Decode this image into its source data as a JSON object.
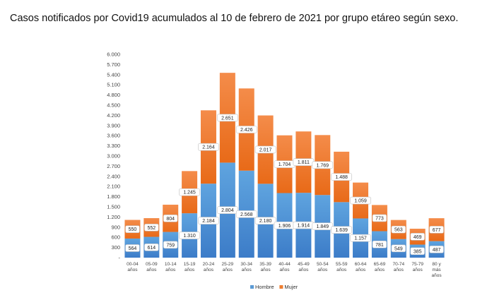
{
  "title": "Casos notificados por Covid19 acumulados al 10 de febrero de 2021 por grupo etáreo según sexo.",
  "chart_data": {
    "type": "bar",
    "stacked": true,
    "categories": [
      [
        "00-04",
        "años"
      ],
      [
        "05-09",
        "años"
      ],
      [
        "10-14",
        "años"
      ],
      [
        "15-19",
        "años"
      ],
      [
        "20-24",
        "años"
      ],
      [
        "25-29",
        "años"
      ],
      [
        "30-34",
        "años"
      ],
      [
        "35-39",
        "años"
      ],
      [
        "40-44",
        "años"
      ],
      [
        "45-49",
        "años"
      ],
      [
        "50-54",
        "años"
      ],
      [
        "55-59",
        "años"
      ],
      [
        "60-64",
        "años"
      ],
      [
        "65-69",
        "años"
      ],
      [
        "70-74",
        "años"
      ],
      [
        "75-79",
        "años"
      ],
      [
        "80 y",
        "más",
        "años"
      ]
    ],
    "series": [
      {
        "name": "Hombre",
        "color": "#5B9BD5",
        "values": [
          564,
          614,
          759,
          1310,
          2184,
          2804,
          2568,
          2180,
          1906,
          1914,
          1849,
          1639,
          1157,
          781,
          549,
          385,
          487
        ],
        "labels": [
          "564",
          "614",
          "759",
          "1.310",
          "2.184",
          "2.804",
          "2.568",
          "2.180",
          "1.906",
          "1.914",
          "1.849",
          "1.639",
          "1.157",
          "781",
          "549",
          "385",
          "487"
        ]
      },
      {
        "name": "Mujer",
        "color": "#ED7D31",
        "values": [
          550,
          552,
          804,
          1245,
          2164,
          2651,
          2426,
          2017,
          1704,
          1811,
          1769,
          1488,
          1059,
          773,
          563,
          469,
          677
        ],
        "labels": [
          "550",
          "552",
          "804",
          "1.245",
          "2.164",
          "2.651",
          "2.426",
          "2.017",
          "1.704",
          "1.811",
          "1.769",
          "1.488",
          "1.059",
          "773",
          "563",
          "469",
          "677"
        ]
      }
    ],
    "yticks": [
      "-",
      "300",
      "600",
      "900",
      "1.200",
      "1.500",
      "1.800",
      "2.100",
      "2.400",
      "2.700",
      "3.000",
      "3.300",
      "3.600",
      "3.900",
      "4.200",
      "4.500",
      "4.800",
      "5.100",
      "5.400",
      "5.700",
      "6.000"
    ],
    "ylim": [
      0,
      6000
    ],
    "grid": false,
    "legend": "bottom"
  }
}
